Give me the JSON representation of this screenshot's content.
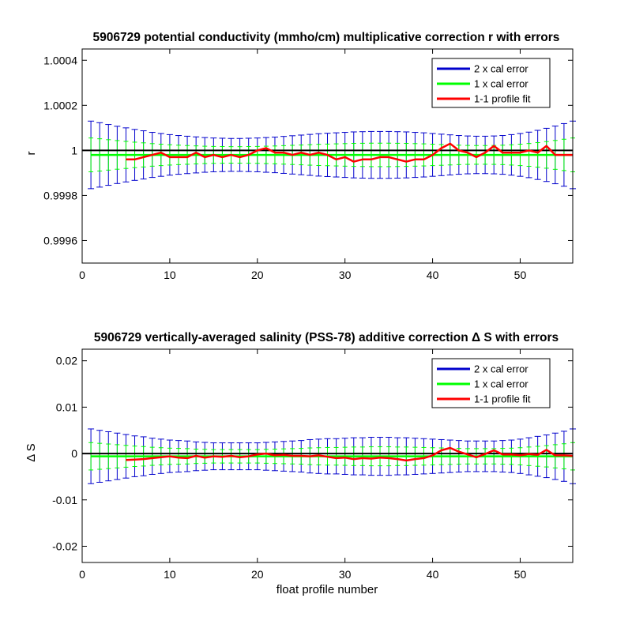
{
  "colors": {
    "two_cal_error": "#0000cc",
    "one_cal_error": "#00ff00",
    "profile_fit": "#ff0000",
    "reference": "#000000"
  },
  "chart_data": [
    {
      "type": "line",
      "title": "5906729 potential conductivity (mmho/cm) multiplicative correction r with errors",
      "xlabel": "",
      "ylabel": "r",
      "xlim": [
        0,
        56
      ],
      "ylim": [
        0.9995,
        1.00045
      ],
      "xticks": [
        0,
        10,
        20,
        30,
        40,
        50
      ],
      "xtick_labels": [
        "0",
        "10",
        "20",
        "30",
        "40",
        "50"
      ],
      "yticks": [
        0.9996,
        0.9998,
        1,
        1.0002,
        1.0004
      ],
      "ytick_labels": [
        "0.9996",
        "0.9998",
        "1",
        "1.0002",
        "1.0004"
      ],
      "reference_line": 1,
      "legend_position": "top-right",
      "legend": [
        "2 x cal error",
        "1 x cal error",
        "1-1 profile fit"
      ],
      "fit_x": [
        5,
        6,
        7,
        8,
        9,
        10,
        11,
        12,
        13,
        14,
        15,
        16,
        17,
        18,
        19,
        20,
        21,
        22,
        23,
        24,
        25,
        26,
        27,
        28,
        29,
        30,
        31,
        32,
        33,
        34,
        35,
        36,
        37,
        38,
        39,
        40,
        41,
        42,
        43,
        44,
        45,
        46,
        47,
        48,
        49,
        50,
        51,
        52,
        53,
        54,
        55,
        56
      ],
      "fit_y": [
        0.99996,
        0.99996,
        0.99997,
        0.99998,
        0.99999,
        0.99997,
        0.99997,
        0.99997,
        0.99999,
        0.99997,
        0.99998,
        0.99997,
        0.99998,
        0.99997,
        0.99998,
        1.0,
        1.00001,
        0.99999,
        0.99999,
        0.99998,
        0.99999,
        0.99998,
        0.99999,
        0.99998,
        0.99996,
        0.99997,
        0.99995,
        0.99996,
        0.99996,
        0.99997,
        0.99997,
        0.99996,
        0.99995,
        0.99996,
        0.99996,
        0.99998,
        1.00001,
        1.00003,
        1.0,
        0.99999,
        0.99997,
        0.99999,
        1.00002,
        0.99999,
        0.99999,
        0.99999,
        1.0,
        0.99999,
        1.00002,
        0.99998,
        0.99998,
        0.99998
      ],
      "center_x": [
        1,
        56
      ],
      "center_y": [
        0.99998,
        0.99998
      ],
      "error_x": [
        1,
        2,
        3,
        4,
        5,
        6,
        7,
        8,
        9,
        10,
        11,
        12,
        13,
        14,
        15,
        16,
        17,
        18,
        19,
        20,
        21,
        22,
        23,
        24,
        25,
        26,
        27,
        28,
        29,
        30,
        31,
        32,
        33,
        34,
        35,
        36,
        37,
        38,
        39,
        40,
        41,
        42,
        43,
        44,
        45,
        46,
        47,
        48,
        49,
        50,
        51,
        52,
        53,
        54,
        55,
        56
      ],
      "error_2x": [
        0.00015,
        0.000143,
        0.000135,
        0.000127,
        0.00012,
        0.000113,
        0.000107,
        0.0001,
        9.5e-05,
        9e-05,
        8.6e-05,
        8.3e-05,
        8e-05,
        7.7e-05,
        7.5e-05,
        7.4e-05,
        7.3e-05,
        7.3e-05,
        7.4e-05,
        7.5e-05,
        7.7e-05,
        7.9e-05,
        8.2e-05,
        8.5e-05,
        8.8e-05,
        9.1e-05,
        9.4e-05,
        9.6e-05,
        9.8e-05,
        0.0001,
        0.000102,
        0.000103,
        0.000104,
        0.000104,
        0.000104,
        0.000103,
        0.000102,
        0.0001,
        9.8e-05,
        9.5e-05,
        9.2e-05,
        8.9e-05,
        8.6e-05,
        8.4e-05,
        8.3e-05,
        8.3e-05,
        8.4e-05,
        8.6e-05,
        9e-05,
        9.5e-05,
        0.000101,
        0.000109,
        0.000118,
        0.000128,
        0.000139,
        0.00015
      ],
      "error_1x": [
        7.5e-05,
        7.15e-05,
        6.75e-05,
        6.35e-05,
        6e-05,
        5.65e-05,
        5.35e-05,
        5e-05,
        4.75e-05,
        4.5e-05,
        4.3e-05,
        4.15e-05,
        4e-05,
        3.85e-05,
        3.75e-05,
        3.7e-05,
        3.65e-05,
        3.65e-05,
        3.7e-05,
        3.75e-05,
        3.85e-05,
        3.95e-05,
        4.1e-05,
        4.25e-05,
        4.4e-05,
        4.55e-05,
        4.7e-05,
        4.8e-05,
        4.9e-05,
        5e-05,
        5.1e-05,
        5.15e-05,
        5.2e-05,
        5.2e-05,
        5.2e-05,
        5.15e-05,
        5.1e-05,
        5e-05,
        4.9e-05,
        4.75e-05,
        4.6e-05,
        4.45e-05,
        4.3e-05,
        4.2e-05,
        4.15e-05,
        4.15e-05,
        4.2e-05,
        4.3e-05,
        4.5e-05,
        4.75e-05,
        5.05e-05,
        5.45e-05,
        5.9e-05,
        6.4e-05,
        6.95e-05,
        7.5e-05
      ]
    },
    {
      "type": "line",
      "title": "5906729 vertically-averaged salinity (PSS-78) additive correction Δ S with errors",
      "xlabel": "float profile number",
      "ylabel": "Δ S",
      "xlim": [
        0,
        56
      ],
      "ylim": [
        -0.0235,
        0.0225
      ],
      "xticks": [
        0,
        10,
        20,
        30,
        40,
        50
      ],
      "xtick_labels": [
        "0",
        "10",
        "20",
        "30",
        "40",
        "50"
      ],
      "yticks": [
        -0.02,
        -0.01,
        0,
        0.01,
        0.02
      ],
      "ytick_labels": [
        "-0.02",
        "-0.01",
        "0",
        "0.01",
        "0.02"
      ],
      "reference_line": 0,
      "legend_position": "top-right",
      "legend": [
        "2 x cal error",
        "1 x cal error",
        "1-1 profile fit"
      ],
      "fit_x": [
        5,
        6,
        7,
        8,
        9,
        10,
        11,
        12,
        13,
        14,
        15,
        16,
        17,
        18,
        19,
        20,
        21,
        22,
        23,
        24,
        25,
        26,
        27,
        28,
        29,
        30,
        31,
        32,
        33,
        34,
        35,
        36,
        37,
        38,
        39,
        40,
        41,
        42,
        43,
        44,
        45,
        46,
        47,
        48,
        49,
        50,
        51,
        52,
        53,
        54,
        55,
        56
      ],
      "fit_y": [
        -0.0014,
        -0.0013,
        -0.0012,
        -0.001,
        -0.0008,
        -0.0006,
        -0.0009,
        -0.001,
        -0.0005,
        -0.0009,
        -0.0006,
        -0.0007,
        -0.0005,
        -0.0008,
        -0.0006,
        -0.0002,
        0.0,
        -0.0004,
        -0.0003,
        -0.0005,
        -0.0005,
        -0.0006,
        -0.0004,
        -0.0007,
        -0.001,
        -0.0009,
        -0.0012,
        -0.001,
        -0.0011,
        -0.0009,
        -0.001,
        -0.0012,
        -0.0015,
        -0.0012,
        -0.001,
        -0.0004,
        0.0007,
        0.0012,
        0.0004,
        -0.0002,
        -0.0008,
        -0.0001,
        0.0007,
        -0.0002,
        -0.0002,
        -0.0004,
        -0.0001,
        -0.0003,
        0.0008,
        -0.0004,
        -0.0004,
        -0.0005
      ],
      "center_x": [
        1,
        56
      ],
      "center_y": [
        -0.0006,
        -0.0006
      ],
      "error_x": [
        1,
        2,
        3,
        4,
        5,
        6,
        7,
        8,
        9,
        10,
        11,
        12,
        13,
        14,
        15,
        16,
        17,
        18,
        19,
        20,
        21,
        22,
        23,
        24,
        25,
        26,
        27,
        28,
        29,
        30,
        31,
        32,
        33,
        34,
        35,
        36,
        37,
        38,
        39,
        40,
        41,
        42,
        43,
        44,
        45,
        46,
        47,
        48,
        49,
        50,
        51,
        52,
        53,
        54,
        55,
        56
      ],
      "error_2x": [
        0.0059,
        0.0056,
        0.0053,
        0.005,
        0.0047,
        0.0044,
        0.0042,
        0.0039,
        0.0037,
        0.0035,
        0.0034,
        0.0033,
        0.0031,
        0.003,
        0.0029,
        0.0029,
        0.0029,
        0.0029,
        0.0029,
        0.0029,
        0.003,
        0.0031,
        0.0032,
        0.0033,
        0.0034,
        0.0036,
        0.0037,
        0.0038,
        0.0038,
        0.0039,
        0.004,
        0.004,
        0.0041,
        0.0041,
        0.0041,
        0.004,
        0.004,
        0.0039,
        0.0038,
        0.0037,
        0.0036,
        0.0035,
        0.0034,
        0.0033,
        0.0033,
        0.0033,
        0.0033,
        0.0034,
        0.0035,
        0.0037,
        0.004,
        0.0043,
        0.0046,
        0.005,
        0.0054,
        0.0059
      ],
      "error_1x": [
        0.00295,
        0.0028,
        0.00265,
        0.0025,
        0.00235,
        0.0022,
        0.0021,
        0.00195,
        0.00185,
        0.00175,
        0.0017,
        0.00165,
        0.00155,
        0.0015,
        0.00145,
        0.00145,
        0.00145,
        0.00145,
        0.00145,
        0.00145,
        0.0015,
        0.00155,
        0.0016,
        0.00165,
        0.0017,
        0.0018,
        0.00185,
        0.0019,
        0.0019,
        0.00195,
        0.002,
        0.002,
        0.00205,
        0.00205,
        0.00205,
        0.002,
        0.002,
        0.00195,
        0.0019,
        0.00185,
        0.0018,
        0.00175,
        0.0017,
        0.00165,
        0.00165,
        0.00165,
        0.00165,
        0.0017,
        0.00175,
        0.00185,
        0.002,
        0.00215,
        0.0023,
        0.0025,
        0.0027,
        0.00295
      ]
    }
  ]
}
